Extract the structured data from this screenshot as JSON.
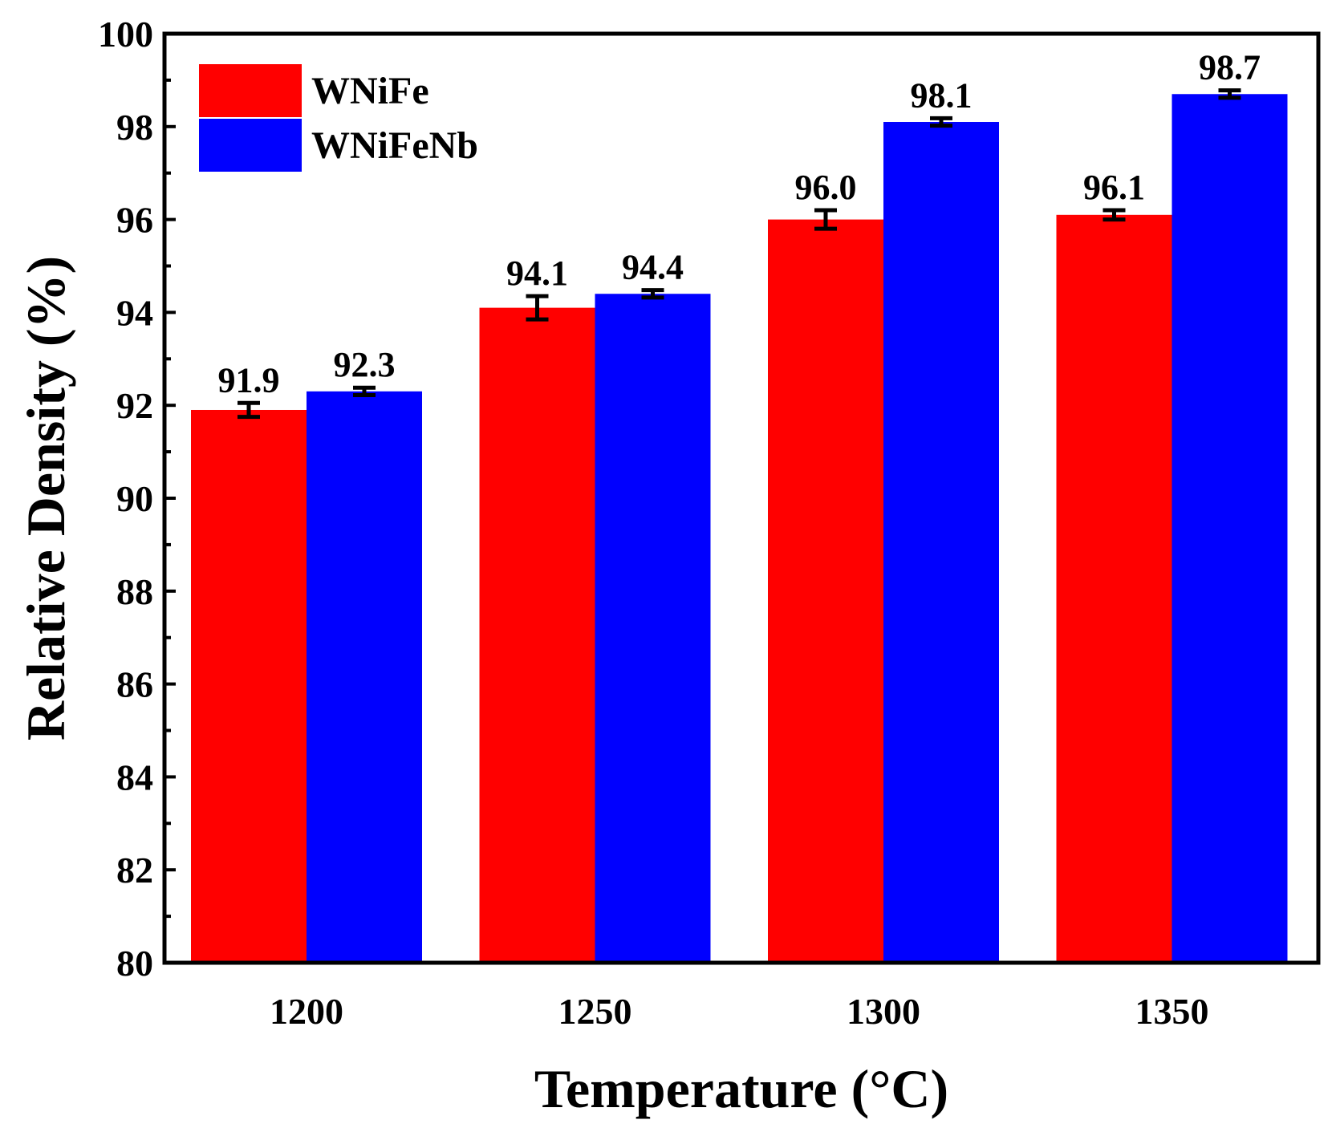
{
  "chart_data": {
    "type": "bar",
    "title": "",
    "xlabel": "Temperature (°C)",
    "ylabel": "Relative Density (%)",
    "ylim": [
      80,
      100
    ],
    "yticks": [
      "80",
      "82",
      "84",
      "86",
      "88",
      "90",
      "92",
      "94",
      "96",
      "98",
      "100"
    ],
    "categories": [
      "1200",
      "1250",
      "1300",
      "1350"
    ],
    "legend_position": "top-left",
    "series": [
      {
        "name": "WNiFe",
        "color": "#ff0000",
        "values": [
          91.9,
          94.1,
          96.0,
          96.1
        ],
        "errors": [
          0.15,
          0.25,
          0.2,
          0.1
        ],
        "labels": [
          "91.9",
          "94.1",
          "96.0",
          "96.1"
        ]
      },
      {
        "name": "WNiFeNb",
        "color": "#0000ff",
        "values": [
          92.3,
          94.4,
          98.1,
          98.7
        ],
        "errors": [
          0.08,
          0.08,
          0.08,
          0.08
        ],
        "labels": [
          "92.3",
          "94.4",
          "98.1",
          "98.7"
        ]
      }
    ]
  }
}
